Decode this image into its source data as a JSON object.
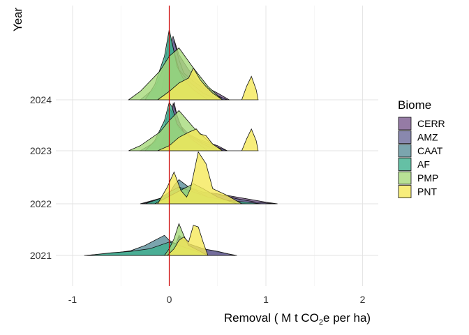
{
  "chart_data": {
    "type": "ridgeline",
    "xlabel": "Removal ( M t CO",
    "xlabel_sub": "2",
    "xlabel_tail": "e per ha)",
    "ylabel": "Year",
    "xlim": [
      -1.0,
      2.2
    ],
    "x_ticks": [
      -1,
      0,
      1,
      2
    ],
    "x_tick_labels": [
      "-1",
      "0",
      "1",
      "2"
    ],
    "years": [
      "2021",
      "2022",
      "2023",
      "2024"
    ],
    "reference_line_x": 0,
    "reference_line_color": "#cc0000",
    "grid": true,
    "legend": {
      "title": "Biome",
      "position": "right"
    },
    "series": [
      {
        "name": "CERR",
        "color": "#7b5a8f"
      },
      {
        "name": "AMZ",
        "color": "#6b6a9a"
      },
      {
        "name": "CAAT",
        "color": "#5a8f9a"
      },
      {
        "name": "AF",
        "color": "#3fb08f"
      },
      {
        "name": "PMP",
        "color": "#a6d97a"
      },
      {
        "name": "PNT",
        "color": "#f5e85a"
      }
    ],
    "densities": [
      {
        "year": "2021",
        "series": "CERR",
        "x": [
          -0.1,
          0.0,
          0.05,
          0.1,
          0.2,
          0.35,
          0.5,
          0.7
        ],
        "y": [
          0,
          0.05,
          0.2,
          0.6,
          0.35,
          0.2,
          0.1,
          0
        ]
      },
      {
        "year": "2021",
        "series": "AMZ",
        "x": [
          -0.05,
          0.0,
          0.05,
          0.1,
          0.2,
          0.35,
          0.5,
          0.68
        ],
        "y": [
          0,
          0.05,
          0.25,
          0.55,
          0.35,
          0.2,
          0.12,
          0
        ]
      },
      {
        "year": "2021",
        "series": "CAAT",
        "x": [
          -0.88,
          -0.6,
          -0.4,
          -0.25,
          -0.15,
          -0.05,
          0.0,
          0.1,
          0.25,
          0.4
        ],
        "y": [
          0,
          0.06,
          0.14,
          0.3,
          0.45,
          0.6,
          0.45,
          0.3,
          0.15,
          0
        ]
      },
      {
        "year": "2021",
        "series": "AF",
        "x": [
          -0.85,
          -0.6,
          -0.4,
          -0.2,
          -0.1,
          0.0,
          0.1,
          0.2,
          0.4
        ],
        "y": [
          0,
          0.08,
          0.12,
          0.2,
          0.3,
          0.4,
          0.3,
          0.2,
          0
        ]
      },
      {
        "year": "2021",
        "series": "PMP",
        "x": [
          -0.05,
          0.0,
          0.05,
          0.1,
          0.15,
          0.2,
          0.3,
          0.4
        ],
        "y": [
          0,
          0.2,
          0.5,
          0.95,
          0.6,
          0.3,
          0.15,
          0
        ]
      },
      {
        "year": "2021",
        "series": "PNT",
        "x": [
          -0.02,
          0.05,
          0.1,
          0.15,
          0.2,
          0.25,
          0.3,
          0.35,
          0.4
        ],
        "y": [
          0,
          0.2,
          0.45,
          0.55,
          0.4,
          0.9,
          0.85,
          0.4,
          0
        ]
      },
      {
        "year": "2022",
        "series": "CERR",
        "x": [
          -0.3,
          -0.2,
          -0.05,
          0.05,
          0.2,
          0.4,
          0.6,
          0.8,
          1.0,
          1.12
        ],
        "y": [
          0,
          0.08,
          0.2,
          0.35,
          0.4,
          0.3,
          0.25,
          0.15,
          0.05,
          0
        ]
      },
      {
        "year": "2022",
        "series": "AMZ",
        "x": [
          -0.28,
          -0.15,
          0.0,
          0.1,
          0.2,
          0.35,
          0.5,
          0.7,
          0.9,
          1.1
        ],
        "y": [
          0,
          0.1,
          0.25,
          0.45,
          0.5,
          0.35,
          0.3,
          0.15,
          0.05,
          0
        ]
      },
      {
        "year": "2022",
        "series": "CAAT",
        "x": [
          -0.2,
          -0.1,
          0.0,
          0.05,
          0.1,
          0.2,
          0.3,
          0.4,
          0.6,
          0.8
        ],
        "y": [
          0,
          0.12,
          0.3,
          0.55,
          0.72,
          0.5,
          0.35,
          0.2,
          0.08,
          0
        ]
      },
      {
        "year": "2022",
        "series": "AF",
        "x": [
          -0.25,
          -0.1,
          0.0,
          0.1,
          0.2,
          0.3,
          0.4,
          0.6,
          0.8,
          0.95
        ],
        "y": [
          0,
          0.15,
          0.35,
          0.5,
          0.4,
          0.3,
          0.2,
          0.1,
          0.05,
          0
        ]
      },
      {
        "year": "2022",
        "series": "PMP",
        "x": [
          -0.15,
          -0.05,
          0.05,
          0.15,
          0.25,
          0.35,
          0.5,
          0.7
        ],
        "y": [
          0,
          0.15,
          0.3,
          0.45,
          0.6,
          0.45,
          0.2,
          0
        ]
      },
      {
        "year": "2022",
        "series": "PNT",
        "x": [
          -0.12,
          -0.02,
          0.05,
          0.12,
          0.18,
          0.22,
          0.3,
          0.38,
          0.45,
          0.6,
          0.75
        ],
        "y": [
          0,
          0.5,
          0.95,
          0.4,
          0.2,
          0.45,
          1.55,
          1.2,
          0.45,
          0.25,
          0
        ]
      },
      {
        "year": "2023",
        "series": "CERR",
        "x": [
          -0.1,
          0.0,
          0.05,
          0.1,
          0.2,
          0.3,
          0.4,
          0.5,
          0.6
        ],
        "y": [
          0,
          0.6,
          1.45,
          0.8,
          0.5,
          0.35,
          0.25,
          0.15,
          0
        ]
      },
      {
        "year": "2023",
        "series": "AMZ",
        "x": [
          -0.12,
          0.0,
          0.04,
          0.1,
          0.15,
          0.25,
          0.35,
          0.5,
          0.6
        ],
        "y": [
          0,
          0.8,
          1.4,
          0.9,
          0.55,
          0.4,
          0.25,
          0.1,
          0
        ]
      },
      {
        "year": "2023",
        "series": "CAAT",
        "x": [
          -0.3,
          -0.15,
          -0.05,
          0.0,
          0.05,
          0.1,
          0.2,
          0.35,
          0.5
        ],
        "y": [
          0,
          0.25,
          0.7,
          1.3,
          1.0,
          0.65,
          0.45,
          0.2,
          0
        ]
      },
      {
        "year": "2023",
        "series": "AF",
        "x": [
          -0.25,
          -0.15,
          -0.05,
          0.0,
          0.03,
          0.08,
          0.15,
          0.25,
          0.4
        ],
        "y": [
          0,
          0.3,
          0.9,
          1.45,
          1.3,
          0.8,
          0.55,
          0.3,
          0
        ]
      },
      {
        "year": "2023",
        "series": "PMP",
        "x": [
          -0.42,
          -0.3,
          -0.2,
          -0.1,
          0.0,
          0.1,
          0.25,
          0.4,
          0.55
        ],
        "y": [
          0,
          0.15,
          0.35,
          0.55,
          0.9,
          1.2,
          0.7,
          0.3,
          0
        ]
      },
      {
        "year": "2023",
        "series": "PNT",
        "x": [
          -0.12,
          0.0,
          0.1,
          0.2,
          0.28,
          0.32,
          0.38,
          0.45,
          0.55,
          0.75,
          0.8,
          0.85,
          0.9,
          0.92
        ],
        "y": [
          0,
          0.15,
          0.4,
          0.55,
          0.65,
          0.5,
          0.45,
          0.2,
          0.0,
          0.0,
          0.35,
          0.65,
          0.3,
          0
        ]
      },
      {
        "year": "2024",
        "series": "CERR",
        "x": [
          -0.05,
          0.0,
          0.05,
          0.1,
          0.2,
          0.3,
          0.4,
          0.5,
          0.62
        ],
        "y": [
          0,
          1.3,
          1.8,
          1.35,
          0.9,
          0.55,
          0.35,
          0.2,
          0
        ]
      },
      {
        "year": "2024",
        "series": "AMZ",
        "x": [
          -0.1,
          0.0,
          0.04,
          0.1,
          0.15,
          0.25,
          0.35,
          0.5,
          0.6
        ],
        "y": [
          0,
          1.4,
          1.9,
          1.2,
          0.8,
          0.55,
          0.35,
          0.12,
          0
        ]
      },
      {
        "year": "2024",
        "series": "CAAT",
        "x": [
          -0.3,
          -0.15,
          -0.05,
          0.0,
          0.05,
          0.1,
          0.2,
          0.35,
          0.5
        ],
        "y": [
          0,
          0.35,
          1.0,
          1.95,
          1.45,
          0.9,
          0.55,
          0.2,
          0
        ]
      },
      {
        "year": "2024",
        "series": "AF",
        "x": [
          -0.25,
          -0.15,
          -0.05,
          0.0,
          0.03,
          0.08,
          0.15,
          0.25,
          0.4
        ],
        "y": [
          0,
          0.45,
          1.3,
          2.1,
          1.7,
          1.0,
          0.6,
          0.3,
          0
        ]
      },
      {
        "year": "2024",
        "series": "PMP",
        "x": [
          -0.42,
          -0.3,
          -0.2,
          -0.1,
          0.0,
          0.1,
          0.25,
          0.4,
          0.55
        ],
        "y": [
          0,
          0.25,
          0.55,
          0.85,
          1.3,
          1.55,
          0.95,
          0.4,
          0
        ]
      },
      {
        "year": "2024",
        "series": "PNT",
        "x": [
          -0.12,
          0.0,
          0.1,
          0.2,
          0.25,
          0.32,
          0.38,
          0.45,
          0.55,
          0.75,
          0.8,
          0.85,
          0.9,
          0.92
        ],
        "y": [
          0,
          0.25,
          0.5,
          0.65,
          0.95,
          0.6,
          0.4,
          0.2,
          0.0,
          0.0,
          0.4,
          0.7,
          0.3,
          0
        ]
      }
    ]
  }
}
